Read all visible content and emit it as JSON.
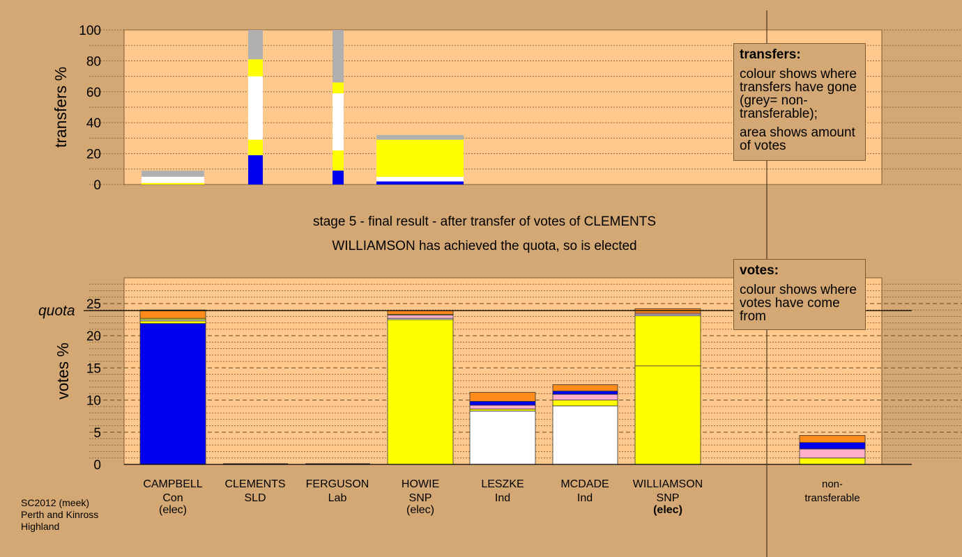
{
  "chart_data": [
    {
      "type": "bar",
      "stacked": true,
      "ylabel": "transfers %",
      "ylim": [
        0,
        100
      ],
      "yticks": [
        0,
        20,
        40,
        60,
        80,
        100
      ],
      "bars": [
        {
          "candidate": "CAMPBELL",
          "segments": [
            [
              "yellow",
              1
            ],
            [
              "white",
              4
            ],
            [
              "grey",
              4
            ]
          ]
        },
        {
          "candidate": "CLEMENTS",
          "segments": [
            [
              "blue",
              19
            ],
            [
              "yellow",
              10
            ],
            [
              "white",
              41
            ],
            [
              "yellow",
              11
            ],
            [
              "grey",
              19
            ]
          ]
        },
        {
          "candidate": "FERGUSON",
          "segments": [
            [
              "blue",
              9
            ],
            [
              "yellow",
              13
            ],
            [
              "white",
              37
            ],
            [
              "yellow",
              7
            ],
            [
              "grey",
              34
            ]
          ]
        },
        {
          "candidate": "HOWIE",
          "segments": [
            [
              "blue",
              2
            ],
            [
              "white",
              3
            ],
            [
              "yellow",
              24
            ],
            [
              "grey",
              3
            ]
          ]
        }
      ]
    },
    {
      "type": "bar",
      "stacked": true,
      "ylabel": "votes %",
      "ylim": [
        0,
        29
      ],
      "yticks": [
        0,
        5,
        10,
        15,
        20,
        25
      ],
      "quota": 23.9,
      "quota_label": "quota",
      "bars": [
        {
          "candidate": "CAMPBELL",
          "segments": [
            [
              "blue",
              21.9
            ],
            [
              "yellow",
              0.4
            ],
            [
              "white",
              0.2
            ],
            [
              "yellow",
              0.2
            ],
            [
              "orange",
              1.3
            ]
          ]
        },
        {
          "candidate": "CLEMENTS",
          "segments": []
        },
        {
          "candidate": "FERGUSON",
          "segments": []
        },
        {
          "candidate": "HOWIE",
          "segments": [
            [
              "yellow",
              22.5
            ],
            [
              "white",
              0.2
            ],
            [
              "pink",
              0.5
            ],
            [
              "yellow",
              0.1
            ],
            [
              "orange",
              0.6
            ]
          ]
        },
        {
          "candidate": "LESZKE",
          "segments": [
            [
              "white",
              8.3
            ],
            [
              "yellow",
              0.3
            ],
            [
              "pink",
              0.6
            ],
            [
              "blue",
              0.6
            ],
            [
              "orange",
              1.4
            ]
          ]
        },
        {
          "candidate": "MCDADE",
          "segments": [
            [
              "white",
              9.1
            ],
            [
              "yellow",
              0.9
            ],
            [
              "pink",
              0.9
            ],
            [
              "blue",
              0.5
            ],
            [
              "orange",
              1.0
            ]
          ]
        },
        {
          "candidate": "WILLIAMSON",
          "segments": [
            [
              "yellow",
              15.3
            ],
            [
              "yellow",
              7.8
            ],
            [
              "white",
              0.2
            ],
            [
              "pink",
              0.2
            ],
            [
              "orange",
              0.7
            ]
          ]
        },
        {
          "candidate": "non-transferable",
          "segments": [
            [
              "yellow",
              1.0
            ],
            [
              "pink",
              1.4
            ],
            [
              "blue",
              1.0
            ],
            [
              "orange",
              1.1
            ]
          ]
        }
      ]
    }
  ],
  "colors": {
    "blue": "#0000ee",
    "yellow": "#ffff00",
    "white": "#ffffff",
    "grey": "#b0b0b0",
    "orange": "#ff8c1a",
    "pink": "#ffb0c8",
    "plot_bg": "#ffc88c",
    "page_bg": "#d4a874"
  },
  "title": {
    "line1": "stage 5 - final result - after transfer of votes of CLEMENTS",
    "line2": "WILLIAMSON has achieved the quota, so is elected"
  },
  "legend_transfers": {
    "heading": "transfers:",
    "text1": "colour shows where transfers have gone (grey= non-transferable);",
    "text2": "area shows amount of votes"
  },
  "legend_votes": {
    "heading": "votes:",
    "text1": "colour shows where votes have come from"
  },
  "candidates": [
    {
      "name": "CAMPBELL",
      "party": "Con",
      "status": "(elec)",
      "bold": false
    },
    {
      "name": "CLEMENTS",
      "party": "SLD",
      "status": "",
      "bold": false
    },
    {
      "name": "FERGUSON",
      "party": "Lab",
      "status": "",
      "bold": false
    },
    {
      "name": "HOWIE",
      "party": "SNP",
      "status": "(elec)",
      "bold": false
    },
    {
      "name": "LESZKE",
      "party": "Ind",
      "status": "",
      "bold": false
    },
    {
      "name": "MCDADE",
      "party": "Ind",
      "status": "",
      "bold": false
    },
    {
      "name": "WILLIAMSON",
      "party": "SNP",
      "status": "(elec)",
      "bold": true
    },
    {
      "name": "non-",
      "party": "transferable",
      "status": "",
      "bold": false
    }
  ],
  "footer": {
    "line1": "SC2012 (meek)",
    "line2": "Perth and Kinross",
    "line3": "Highland"
  }
}
